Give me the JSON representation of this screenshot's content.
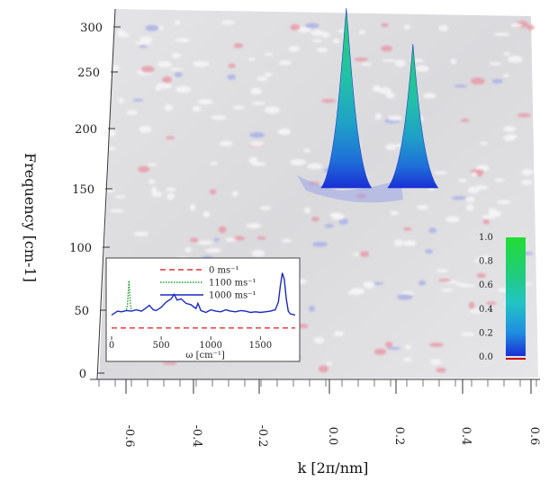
{
  "chart_data": [
    {
      "type": "surface",
      "xlabel": "k [2π/nm]",
      "ylabel": "Frequency [cm-1]",
      "x_ticks": [
        "-0.6",
        "-0.4",
        "-0.2",
        "0.0",
        "0.2",
        "0.4",
        "0.6"
      ],
      "y_ticks": [
        "0",
        "50",
        "100",
        "150",
        "200",
        "250",
        "300"
      ],
      "xlim": [
        -0.7,
        0.7
      ],
      "ylim": [
        0,
        310
      ],
      "peaks": [
        {
          "k": 0.04,
          "frequency": 160,
          "height": 1.0
        },
        {
          "k": 0.24,
          "frequency": 160,
          "height": 0.8
        }
      ],
      "colorbar": {
        "ticks": [
          "1.0",
          "0.8",
          "0.6",
          "0.4",
          "0.2",
          "0.0"
        ],
        "min": 0.0,
        "max": 1.0,
        "colors": [
          "#cc0000",
          "#1a2fd6",
          "#1f8fe0",
          "#22c4c4",
          "#22cc7a",
          "#22dd33"
        ]
      }
    },
    {
      "type": "line",
      "xlabel": "ω [cm⁻¹]",
      "x_ticks": [
        "0",
        "500",
        "1000",
        "1500"
      ],
      "xlim": [
        0,
        1850
      ],
      "ylim": [
        0,
        1
      ],
      "legend_position": "top-center",
      "series": [
        {
          "name": "0 ms⁻¹",
          "color": "#e03030",
          "style": "dashed",
          "x": [
            0,
            1850
          ],
          "y": [
            0.1,
            0.1
          ]
        },
        {
          "name": "1100 ms⁻¹",
          "color": "#18a030",
          "style": "dotted",
          "x": [
            150,
            160,
            170,
            175,
            180,
            190,
            200
          ],
          "y": [
            0.38,
            0.45,
            0.7,
            0.83,
            0.7,
            0.45,
            0.38
          ]
        },
        {
          "name": "1000 ms⁻¹",
          "color": "#1a2ac0",
          "style": "solid",
          "x": [
            0,
            60,
            100,
            150,
            200,
            250,
            300,
            340,
            380,
            420,
            450,
            500,
            550,
            600,
            630,
            660,
            700,
            750,
            800,
            850,
            870,
            900,
            950,
            1000,
            1050,
            1100,
            1150,
            1200,
            1250,
            1300,
            1350,
            1400,
            1450,
            1500,
            1550,
            1600,
            1650,
            1680,
            1700,
            1720,
            1740,
            1760,
            1780,
            1800,
            1850
          ],
          "y": [
            0.3,
            0.36,
            0.35,
            0.37,
            0.36,
            0.38,
            0.36,
            0.4,
            0.45,
            0.38,
            0.37,
            0.42,
            0.5,
            0.55,
            0.62,
            0.53,
            0.55,
            0.48,
            0.46,
            0.4,
            0.48,
            0.37,
            0.34,
            0.38,
            0.36,
            0.35,
            0.38,
            0.36,
            0.35,
            0.37,
            0.36,
            0.34,
            0.35,
            0.34,
            0.35,
            0.36,
            0.38,
            0.5,
            0.75,
            0.95,
            0.85,
            0.55,
            0.36,
            0.32,
            0.3
          ]
        }
      ]
    }
  ]
}
